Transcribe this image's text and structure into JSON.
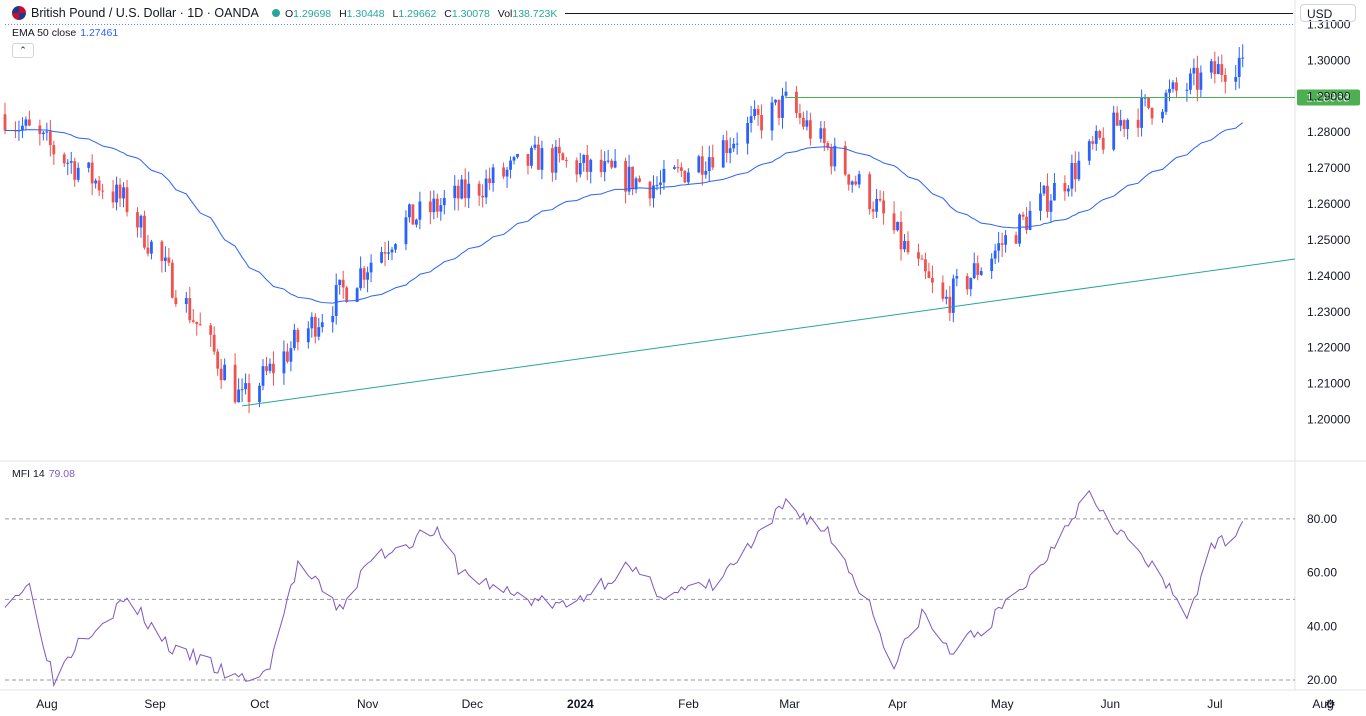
{
  "header": {
    "symbol_title": "British Pound / U.S. Dollar · 1D · OANDA",
    "open_key": "O",
    "open": "1.29698",
    "high_key": "H",
    "high": "1.30448",
    "low_key": "L",
    "low": "1.29662",
    "close_key": "C",
    "close": "1.30078",
    "vol_key": "Vol",
    "vol": "138.723K",
    "currency": "USD",
    "ema_label": "EMA 50 close",
    "ema_value": "1.27461",
    "collapse_icon": "chevron-up-icon",
    "settings_icon": "gear-icon"
  },
  "mfi": {
    "label": "MFI 14",
    "value": "79.08"
  },
  "colors": {
    "up": "#2962ff",
    "down": "#ef5350",
    "ema": "#2962ff",
    "mfi": "#7e57c2",
    "trendline": "#26a69a",
    "resistance": "#4caf50",
    "resistance_label_bg": "#4caf50"
  },
  "chart_data": [
    {
      "type": "candlestick",
      "title": "British Pound / U.S. Dollar · 1D · OANDA",
      "ylim": [
        1.195,
        1.31
      ],
      "y_ticks": [
        "1.31000",
        "1.30000",
        "1.29000",
        "1.28000",
        "1.27000",
        "1.26000",
        "1.25000",
        "1.24000",
        "1.23000",
        "1.22000",
        "1.21000",
        "1.20000"
      ],
      "y_tick_values": [
        1.31,
        1.3,
        1.29,
        1.28,
        1.27,
        1.26,
        1.25,
        1.24,
        1.23,
        1.22,
        1.21,
        1.2
      ],
      "x_ticks": [
        "Aug",
        "Sep",
        "Oct",
        "Nov",
        "Dec",
        "2024",
        "Feb",
        "Mar",
        "Apr",
        "May",
        "Jun",
        "Jul",
        "Aug"
      ],
      "x_tick_dates": [
        "2023-08-01",
        "2023-09-01",
        "2023-10-01",
        "2023-11-01",
        "2023-12-01",
        "2024-01-01",
        "2024-02-01",
        "2024-03-01",
        "2024-04-01",
        "2024-05-01",
        "2024-06-01",
        "2024-07-01",
        "2024-08-01"
      ],
      "x_range": [
        "2023-07-28",
        "2024-08-01"
      ],
      "date_knots": [
        "2023-07-28",
        "2023-09-01",
        "2023-10-04",
        "2023-11-20",
        "2023-12-28",
        "2024-02-01",
        "2024-03-08",
        "2024-04-01",
        "2024-04-22",
        "2024-06-12",
        "2024-07-17"
      ],
      "close_knots": [
        1.285,
        1.26,
        1.205,
        1.255,
        1.273,
        1.265,
        1.288,
        1.262,
        1.232,
        1.283,
        1.3008
      ],
      "ema_last": 1.27461,
      "last_close": 1.30078,
      "last_high": 1.30448,
      "resistance": {
        "value": 1.28968,
        "label": "1.28968",
        "from": "2024-03-08",
        "to": "2024-07-17"
      },
      "trendline": {
        "from_date": "2023-10-04",
        "from_value": 1.2038,
        "to_date": "2024-08-01",
        "to_value": 1.2447
      }
    },
    {
      "type": "line",
      "title": "MFI 14",
      "ylim": [
        17,
        93
      ],
      "y_ticks": [
        "80.00",
        "60.00",
        "40.00",
        "20.00"
      ],
      "y_tick_values": [
        80,
        60,
        40,
        20
      ],
      "levels": [
        80,
        50,
        20
      ],
      "date_knots": [
        "2023-07-28",
        "2023-08-04",
        "2023-08-11",
        "2023-08-18",
        "2023-09-01",
        "2023-09-15",
        "2023-09-22",
        "2023-10-02",
        "2023-10-11",
        "2023-10-20",
        "2023-11-01",
        "2023-11-10",
        "2023-11-28",
        "2023-12-06",
        "2023-12-20",
        "2024-01-05",
        "2024-01-22",
        "2024-02-02",
        "2024-02-16",
        "2024-03-01",
        "2024-03-08",
        "2024-03-20",
        "2024-04-01",
        "2024-04-08",
        "2024-04-16",
        "2024-04-24",
        "2024-05-06",
        "2024-05-20",
        "2024-05-27",
        "2024-06-03",
        "2024-06-14",
        "2024-06-24",
        "2024-07-01",
        "2024-07-08",
        "2024-07-17"
      ],
      "value_knots": [
        50,
        55,
        20,
        35,
        50,
        30,
        28,
        20,
        22,
        63,
        46,
        65,
        76,
        60,
        52,
        47,
        62,
        52,
        55,
        74,
        86,
        75,
        48,
        25,
        45,
        30,
        42,
        62,
        78,
        90,
        72,
        57,
        44,
        68,
        79
      ],
      "last_value": 79.08
    }
  ]
}
